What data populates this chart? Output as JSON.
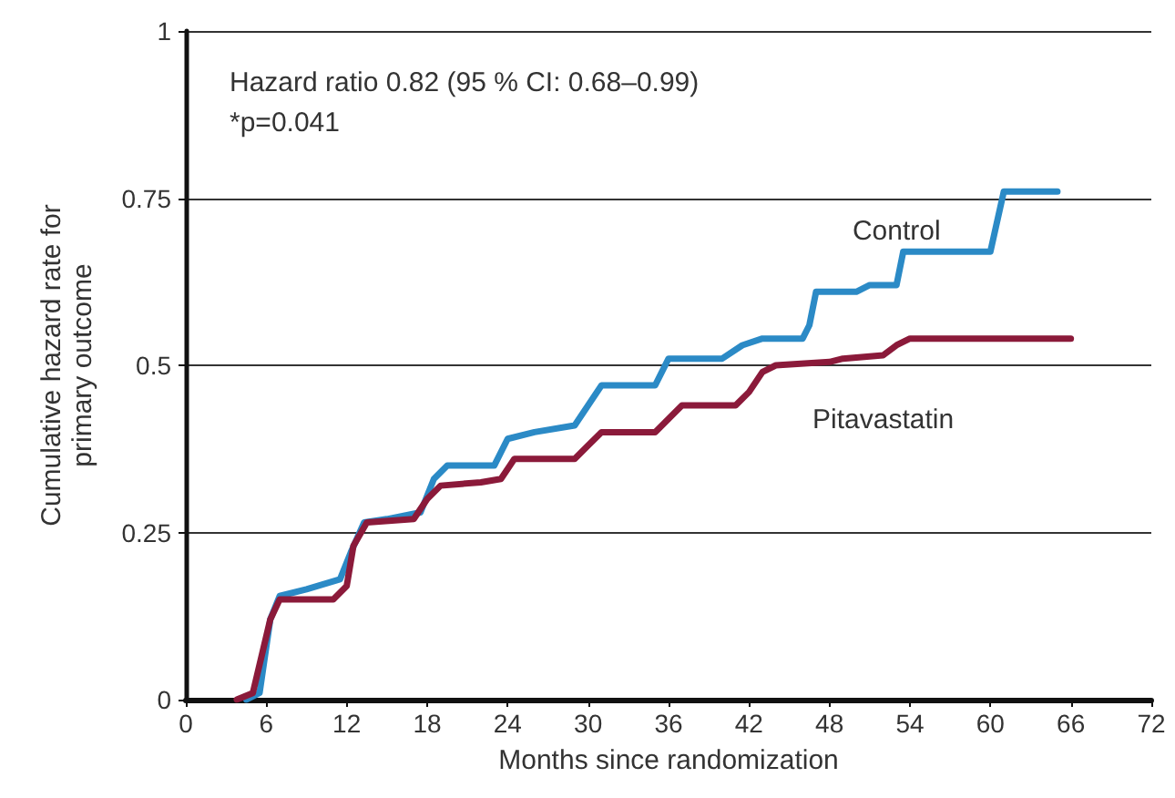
{
  "chart_data": {
    "type": "line",
    "xlabel": "Months since randomization",
    "ylabel": "Cumulative hazard rate for\nprimary outcome",
    "annotations": [
      "Hazard ratio 0.82 (95 % CI: 0.68–0.99)",
      "*p=0.041"
    ],
    "xlim": [
      0,
      72
    ],
    "xticks": [
      0,
      6,
      12,
      18,
      24,
      30,
      36,
      42,
      48,
      54,
      60,
      66,
      72
    ],
    "ylim": [
      0,
      1
    ],
    "yticks": [
      0,
      0.25,
      0.5,
      0.75,
      1
    ],
    "grid": "y",
    "line_style": "solid",
    "marker": "none",
    "series": [
      {
        "name": "Control",
        "color": "#2b8ac6",
        "x": [
          4.5,
          5.5,
          6.3,
          7,
          9,
          11.5,
          12.3,
          13.3,
          15,
          17.5,
          18.5,
          19.5,
          23,
          24,
          26,
          29,
          30,
          31,
          35,
          36,
          40,
          41.5,
          43,
          46,
          46.5,
          47,
          50,
          51,
          53,
          53.5,
          60,
          61,
          65
        ],
        "values": [
          0,
          0.01,
          0.12,
          0.155,
          0.165,
          0.18,
          0.22,
          0.265,
          0.27,
          0.28,
          0.33,
          0.35,
          0.35,
          0.39,
          0.4,
          0.41,
          0.44,
          0.47,
          0.47,
          0.51,
          0.51,
          0.53,
          0.54,
          0.54,
          0.56,
          0.61,
          0.61,
          0.62,
          0.62,
          0.67,
          0.67,
          0.76,
          0.76
        ]
      },
      {
        "name": "Pitavastatin",
        "color": "#8b1a3a",
        "x": [
          3.8,
          5,
          6.3,
          7,
          11,
          12,
          12.5,
          13.5,
          17,
          18,
          19,
          22,
          23.5,
          24.5,
          29,
          30,
          31,
          35,
          36,
          37,
          41,
          42,
          43,
          44,
          48,
          49,
          52,
          53,
          54,
          60,
          66
        ],
        "values": [
          0,
          0.01,
          0.12,
          0.15,
          0.15,
          0.17,
          0.23,
          0.265,
          0.27,
          0.3,
          0.32,
          0.325,
          0.33,
          0.36,
          0.36,
          0.38,
          0.4,
          0.4,
          0.42,
          0.44,
          0.44,
          0.46,
          0.49,
          0.5,
          0.505,
          0.51,
          0.515,
          0.53,
          0.54,
          0.54,
          0.54
        ]
      }
    ]
  }
}
